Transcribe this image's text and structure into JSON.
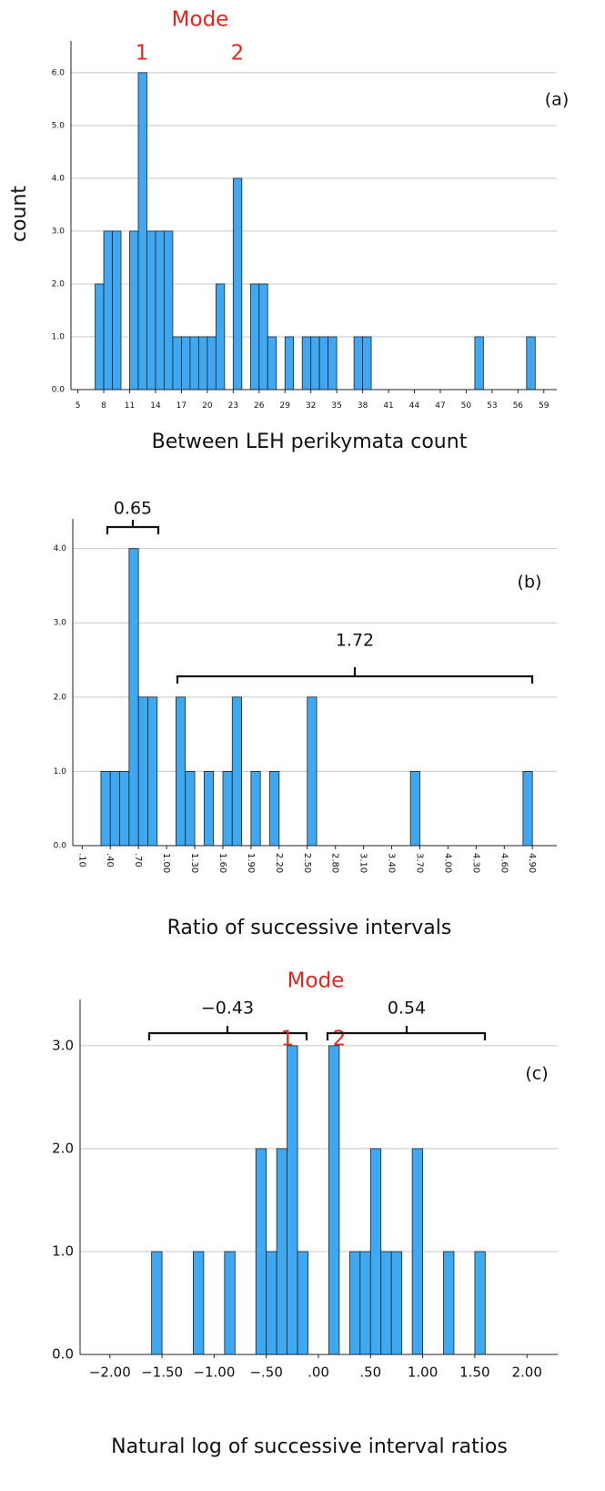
{
  "chart_data": [
    {
      "type": "histogram",
      "x_label": "Between LEH perikymata count",
      "y_label": "count",
      "annotations": [
        "Mode",
        "1",
        "2",
        "(a)"
      ],
      "bins": [
        7,
        8,
        9,
        10,
        11,
        12,
        13,
        14,
        15,
        16,
        17,
        18,
        19,
        20,
        21,
        22,
        23,
        24,
        25,
        26,
        27,
        28,
        29,
        30,
        31,
        32,
        33,
        34,
        35,
        36,
        37,
        38,
        39,
        40,
        41,
        42,
        43,
        44,
        45,
        46,
        47,
        48,
        49,
        50,
        51,
        52,
        53,
        54,
        55,
        56,
        57,
        58
      ],
      "counts": [
        2,
        3,
        3,
        0,
        3,
        6,
        3,
        3,
        3,
        1,
        1,
        1,
        1,
        1,
        2,
        0,
        4,
        0,
        2,
        2,
        1,
        0,
        1,
        0,
        1,
        1,
        1,
        1,
        0,
        0,
        1,
        1,
        0,
        0,
        0,
        0,
        0,
        0,
        0,
        0,
        0,
        0,
        0,
        0,
        1,
        0,
        0,
        0,
        0,
        0,
        1
      ],
      "color": "#3ea8f2",
      "grid": true,
      "xlim": [
        4.2,
        60.5
      ],
      "xticks": [
        5,
        8,
        11,
        14,
        17,
        20,
        23,
        26,
        29,
        32,
        35,
        38,
        41,
        44,
        47,
        50,
        53,
        56,
        59
      ],
      "ylim": [
        0,
        6.6
      ],
      "yticks": [
        {
          "value": 0,
          "label": "0.0"
        },
        {
          "value": 1,
          "label": "1.0"
        },
        {
          "value": 2,
          "label": "2.0"
        },
        {
          "value": 3,
          "label": "3.0"
        },
        {
          "value": 4,
          "label": "4.0"
        },
        {
          "value": 5,
          "label": "5.0"
        },
        {
          "value": 6,
          "label": "6.0"
        }
      ]
    },
    {
      "type": "histogram",
      "x_label": "Ratio of successive intervals",
      "annotations": [
        "0.65",
        "1.72",
        "(b)"
      ],
      "bins": [
        0.3,
        0.4,
        0.5,
        0.6,
        0.7,
        0.8,
        0.9,
        1.0,
        1.1,
        1.2,
        1.3,
        1.4,
        1.5,
        1.6,
        1.7,
        1.8,
        1.9,
        2.0,
        2.1,
        2.2,
        2.3,
        2.4,
        2.5,
        2.6,
        2.7,
        2.8,
        2.9,
        3.0,
        3.1,
        3.2,
        3.3,
        3.4,
        3.5,
        3.6,
        3.7,
        3.8,
        3.9,
        4.0,
        4.1,
        4.2,
        4.3,
        4.4,
        4.5,
        4.6,
        4.7,
        4.8,
        4.9
      ],
      "counts": [
        1,
        1,
        1,
        4,
        2,
        2,
        0,
        0,
        2,
        1,
        0,
        1,
        0,
        1,
        2,
        0,
        1,
        0,
        1,
        0,
        0,
        0,
        2,
        0,
        0,
        0,
        0,
        0,
        0,
        0,
        0,
        0,
        0,
        1,
        0,
        0,
        0,
        0,
        0,
        0,
        0,
        0,
        0,
        0,
        0,
        1
      ],
      "color": "#3ea8f2",
      "grid": true,
      "xlim": [
        0,
        5.16
      ],
      "xticks": [
        {
          "value": 0.1,
          "label": ".10"
        },
        {
          "value": 0.4,
          "label": ".40"
        },
        {
          "value": 0.7,
          "label": ".70"
        },
        {
          "value": 1.0,
          "label": "1.00"
        },
        {
          "value": 1.3,
          "label": "1.30"
        },
        {
          "value": 1.6,
          "label": "1.60"
        },
        {
          "value": 1.9,
          "label": "1.90"
        },
        {
          "value": 2.2,
          "label": "2.20"
        },
        {
          "value": 2.5,
          "label": "2.50"
        },
        {
          "value": 2.8,
          "label": "2.80"
        },
        {
          "value": 3.1,
          "label": "3.10"
        },
        {
          "value": 3.4,
          "label": "3.40"
        },
        {
          "value": 3.7,
          "label": "3.70"
        },
        {
          "value": 4.0,
          "label": "4.00"
        },
        {
          "value": 4.3,
          "label": "4.30"
        },
        {
          "value": 4.6,
          "label": "4.60"
        },
        {
          "value": 4.9,
          "label": "4.90"
        }
      ],
      "ylim": [
        0,
        4.4
      ],
      "yticks": [
        {
          "value": 0,
          "label": "0.0"
        },
        {
          "value": 1,
          "label": "1.0"
        },
        {
          "value": 2,
          "label": "2.0"
        },
        {
          "value": 3,
          "label": "3.0"
        },
        {
          "value": 4,
          "label": "4.0"
        }
      ]
    },
    {
      "type": "histogram",
      "x_label": "Natural log of successive interval ratios",
      "annotations": [
        "Mode",
        "−0.43",
        "1",
        "2",
        "0.54",
        "(c)"
      ],
      "bins": [
        -1.6,
        -1.5,
        -1.4,
        -1.3,
        -1.2,
        -1.1,
        -1.0,
        -0.9,
        -0.8,
        -0.7,
        -0.6,
        -0.5,
        -0.4,
        -0.3,
        -0.2,
        -0.1,
        0.0,
        0.1,
        0.2,
        0.3,
        0.4,
        0.5,
        0.6,
        0.7,
        0.8,
        0.9,
        1.0,
        1.1,
        1.2,
        1.3,
        1.4,
        1.5,
        1.6
      ],
      "counts": [
        1,
        0,
        0,
        0,
        1,
        0,
        0,
        1,
        0,
        0,
        2,
        1,
        2,
        3,
        1,
        0,
        0,
        3,
        0,
        1,
        1,
        2,
        1,
        1,
        0,
        2,
        0,
        0,
        1,
        0,
        0,
        1
      ],
      "color": "#3ea8f2",
      "grid": true,
      "xlim": [
        -2.286,
        2.295
      ],
      "xticks": [
        {
          "value": -2,
          "label": "−2.00"
        },
        {
          "value": -1.5,
          "label": "−1.50"
        },
        {
          "value": -1,
          "label": "−1.00"
        },
        {
          "value": -0.5,
          "label": "−.50"
        },
        {
          "value": 0,
          "label": ".00"
        },
        {
          "value": 0.5,
          "label": ".50"
        },
        {
          "value": 1,
          "label": "1.00"
        },
        {
          "value": 1.5,
          "label": "1.50"
        },
        {
          "value": 2,
          "label": "2.00"
        }
      ],
      "ylim": [
        0,
        3.45
      ],
      "yticks": [
        {
          "value": 0,
          "label": "0.0"
        },
        {
          "value": 1,
          "label": "1.0"
        },
        {
          "value": 2,
          "label": "2.0"
        },
        {
          "value": 3,
          "label": "3.0"
        }
      ]
    }
  ]
}
